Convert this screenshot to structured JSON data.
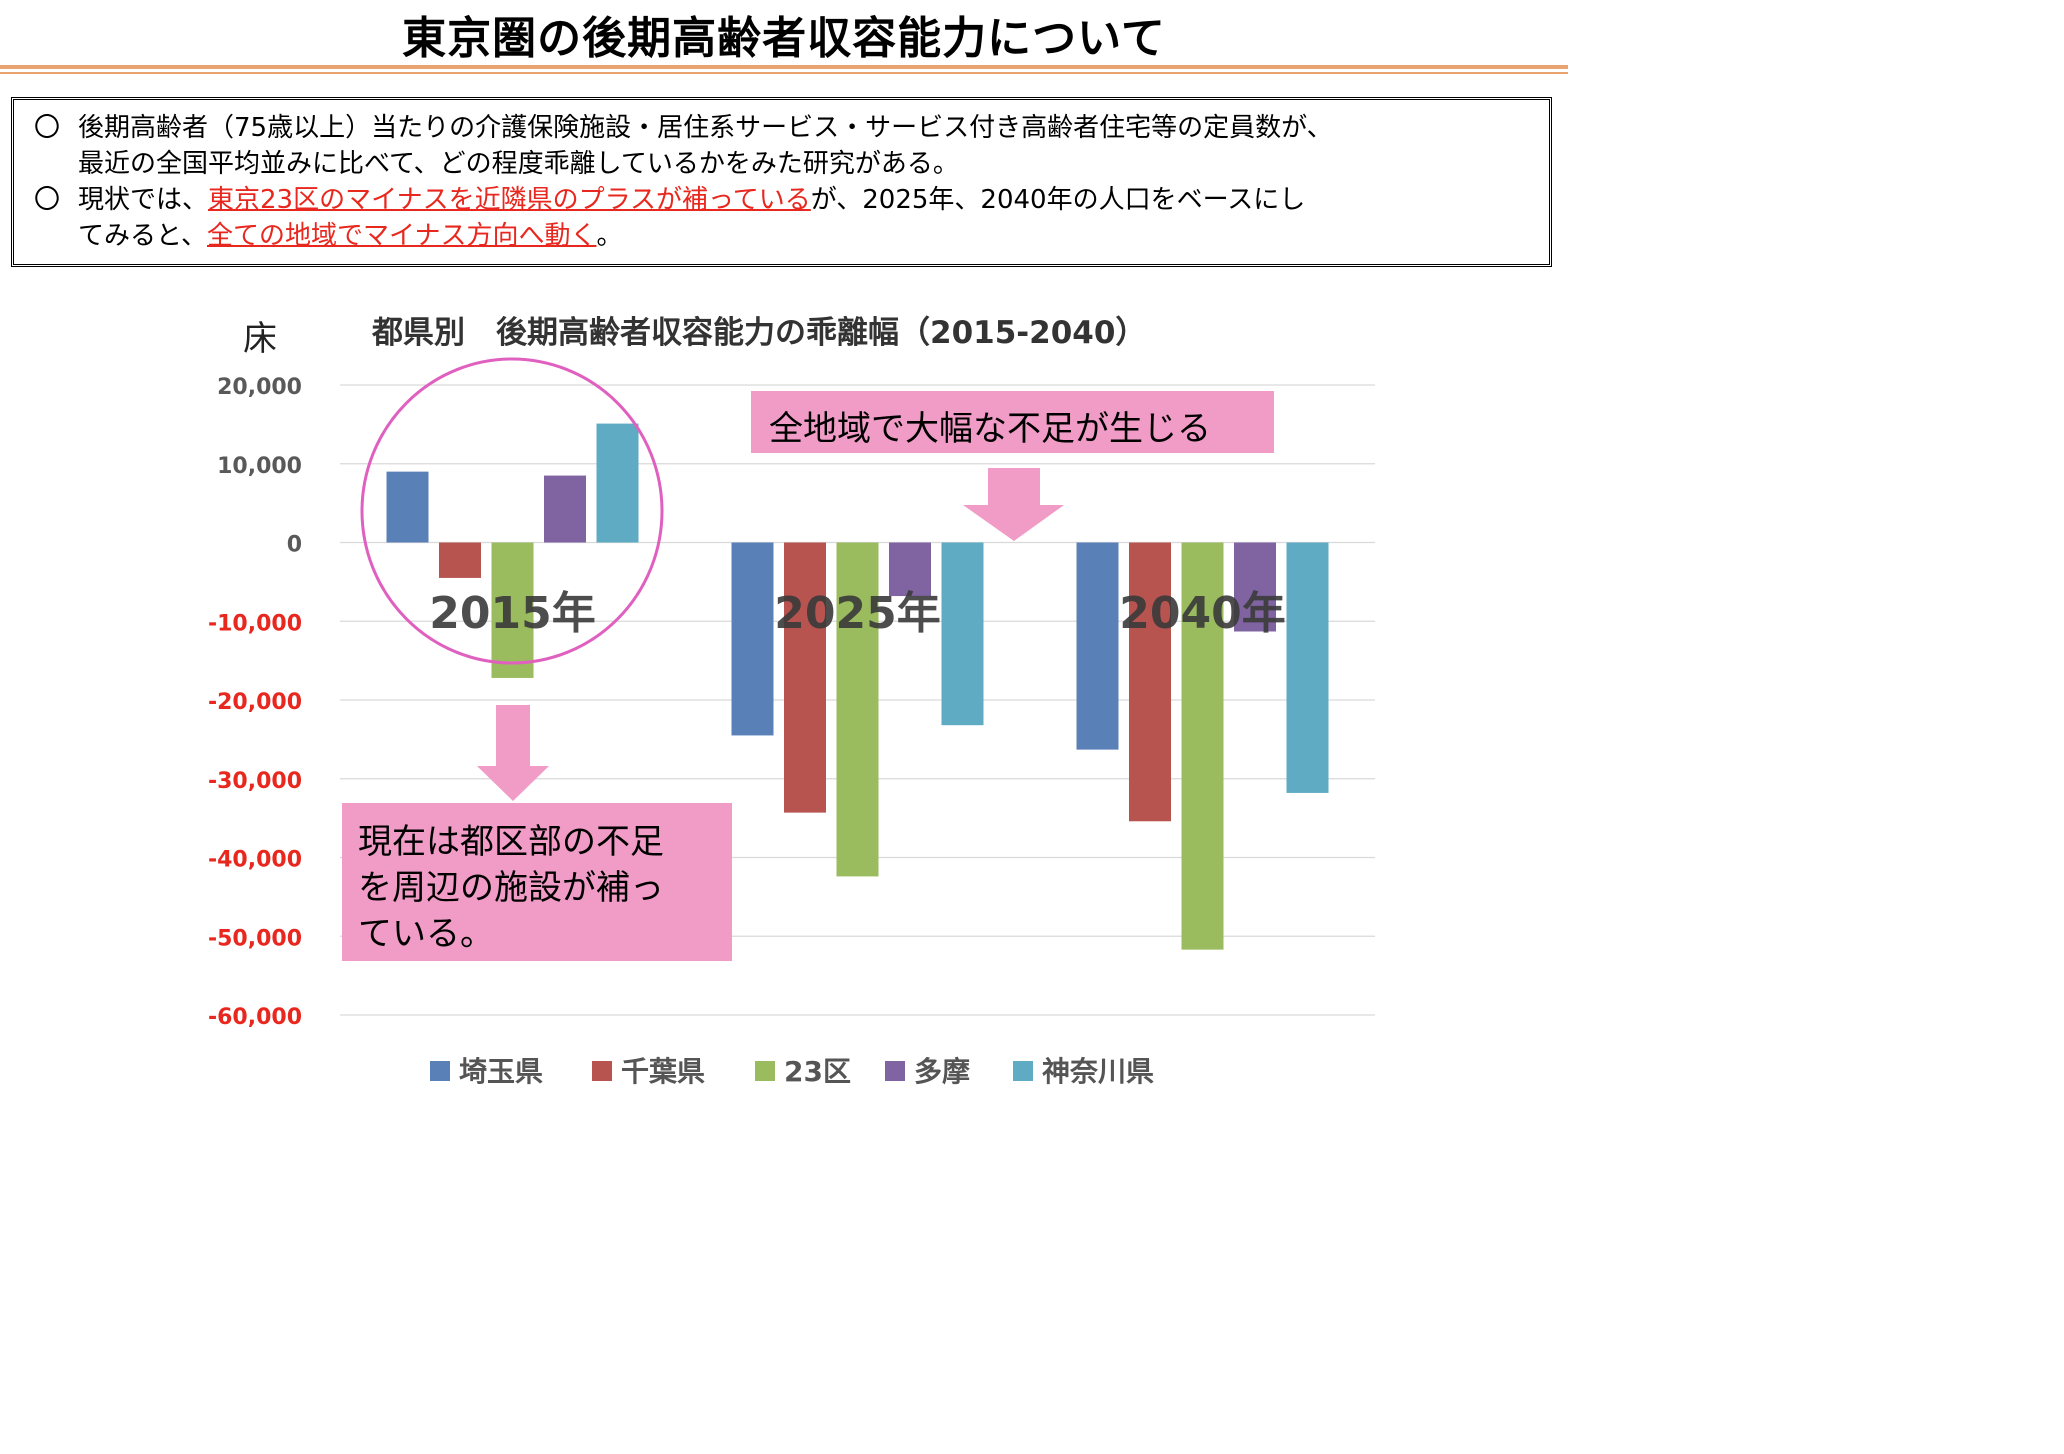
{
  "page": {
    "title": "東京圏の後期高齢者収容能力について"
  },
  "summary": {
    "bullet_mark": "〇",
    "item1": {
      "line1": "後期高齢者（75歳以上）当たりの介護保険施設・居住系サービス・サービス付き高齢者住宅等の定員数が、",
      "line2": "最近の全国平均並みに比べて、どの程度乖離しているかをみた研究がある。"
    },
    "item2": {
      "part1": "現状では、",
      "highlight1": "東京23区のマイナスを近隣県のプラスが補っている",
      "part2": "が、2025年、2040年の人口をベースにし",
      "part3": "てみると、",
      "highlight2": "全ての地域でマイナス方向へ動く",
      "part4": "。"
    }
  },
  "callouts": {
    "top": "全地域で大幅な不足が生じる",
    "bottom_line1": "現在は都区部の不足",
    "bottom_line2": "を周辺の施設が補っ",
    "bottom_line3": "ている。"
  },
  "colors": {
    "positive_tick": "#595959",
    "negative_tick": "#e8271e",
    "highlight_text": "#e8271e",
    "circle": "#e060c0",
    "callout_fill": "#f09cc6",
    "arrow_fill": "#f09cc6",
    "title_rule": "#e8a36f"
  },
  "chart_data": {
    "type": "bar",
    "title": "都県別　後期高齢者収容能力の乖離幅（2015-2040）",
    "ylabel": "床",
    "xlabel": "",
    "ylim": [
      -60000,
      20000
    ],
    "yticks": [
      {
        "value": 20000,
        "label": "20,000"
      },
      {
        "value": 10000,
        "label": "10,000"
      },
      {
        "value": 0,
        "label": "0"
      },
      {
        "value": -10000,
        "label": "-10,000"
      },
      {
        "value": -20000,
        "label": "-20,000"
      },
      {
        "value": -30000,
        "label": "-30,000"
      },
      {
        "value": -40000,
        "label": "-40,000"
      },
      {
        "value": -50000,
        "label": "-50,000"
      },
      {
        "value": -60000,
        "label": "-60,000"
      }
    ],
    "grid": true,
    "legend_position": "bottom",
    "categories": [
      "2015年",
      "2025年",
      "2040年"
    ],
    "series": [
      {
        "name": "埼玉県",
        "color": "#5a80b8",
        "values": [
          9000,
          -24500,
          -26300
        ]
      },
      {
        "name": "千葉県",
        "color": "#b85450",
        "values": [
          -4500,
          -34300,
          -35400
        ]
      },
      {
        "name": "23区",
        "color": "#9bbb5f",
        "values": [
          -17200,
          -42400,
          -51700
        ]
      },
      {
        "name": "多摩",
        "color": "#8064a2",
        "values": [
          8500,
          -6800,
          -11300
        ]
      },
      {
        "name": "神奈川県",
        "color": "#5fabc4",
        "values": [
          15100,
          -23200,
          -31800
        ]
      }
    ]
  }
}
